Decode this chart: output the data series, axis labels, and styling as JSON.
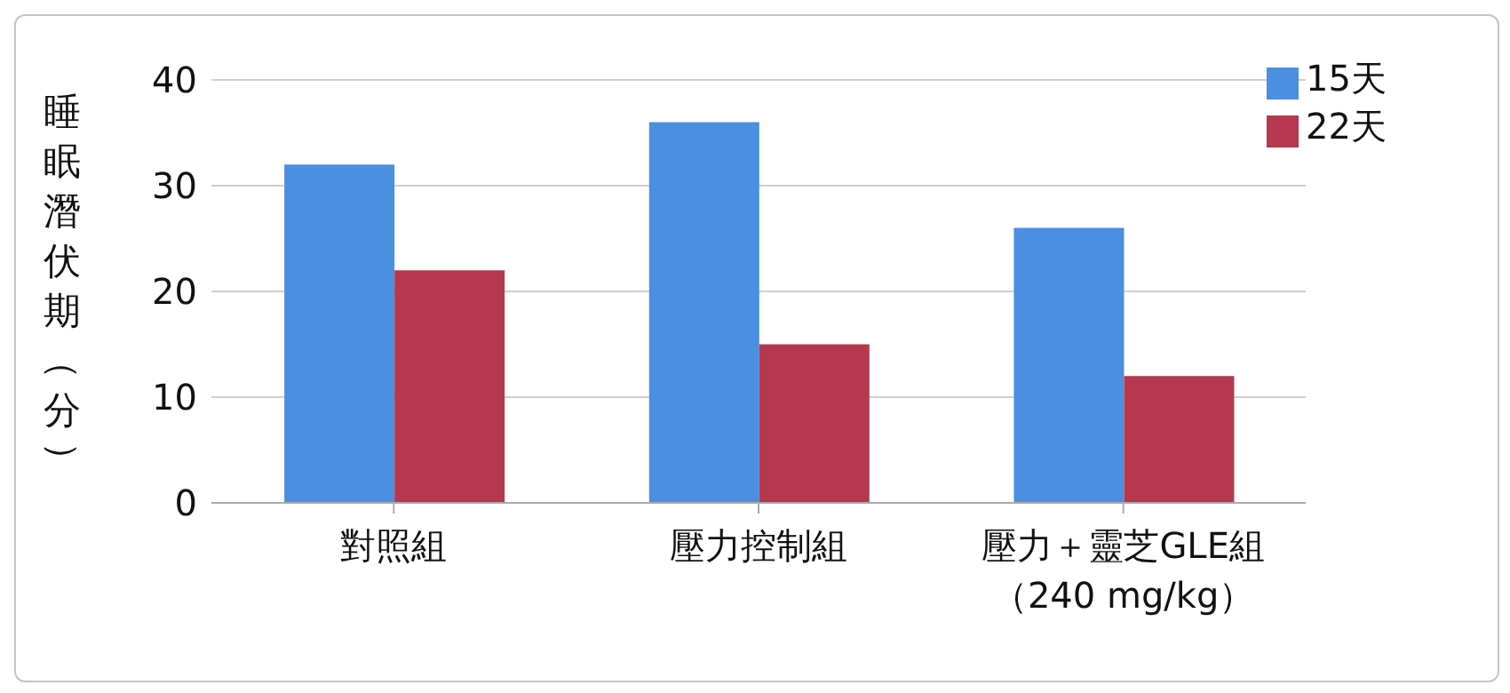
{
  "chart_data": {
    "type": "bar",
    "ylabel": "睡眠潛伏期（分）",
    "categories": [
      "對照組",
      "壓力控制組",
      "壓力＋靈芝GLE組（240 mg/kg）"
    ],
    "series": [
      {
        "name": "15天",
        "color": "#4a8fe0",
        "values": [
          32,
          36,
          26
        ]
      },
      {
        "name": "22天",
        "color": "#b5384f",
        "values": [
          22,
          15,
          12
        ]
      }
    ],
    "ylim": [
      0,
      40
    ],
    "yticks": [
      0,
      10,
      20,
      30,
      40
    ],
    "grid": "y",
    "legend": "top right"
  }
}
